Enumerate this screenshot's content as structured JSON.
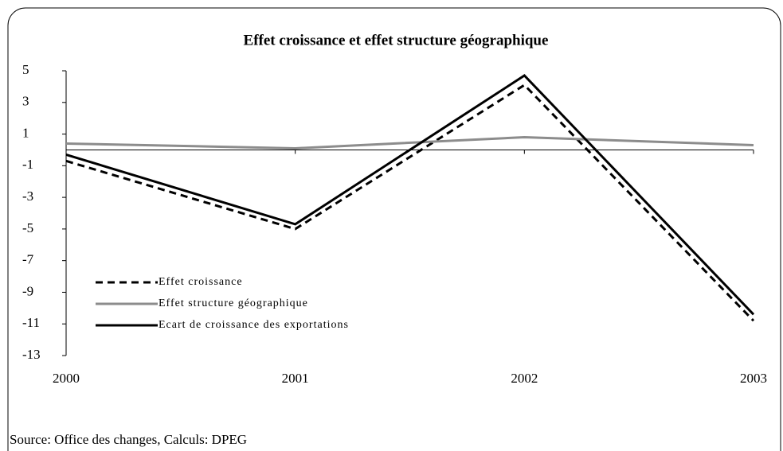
{
  "chart_data": {
    "type": "line",
    "title": "Effet croissance et effet structure géographique",
    "source": "Source: Office des changes, Calculs: DPEG",
    "categories": [
      "2000",
      "2001",
      "2002",
      "2003"
    ],
    "series": [
      {
        "name": "Effet croissance",
        "color": "#000000",
        "dash": "dashed",
        "values": [
          -0.7,
          -5.0,
          4.1,
          -10.8
        ]
      },
      {
        "name": "Effet structure géographique",
        "color": "#8c8c8c",
        "dash": "solid",
        "values": [
          0.4,
          0.1,
          0.8,
          0.3
        ]
      },
      {
        "name": "Ecart de croissance des exportations",
        "color": "#000000",
        "dash": "solid",
        "values": [
          -0.3,
          -4.7,
          4.7,
          -10.4
        ]
      }
    ],
    "ylim": [
      -13,
      5
    ],
    "yticks": [
      -13,
      -11,
      -9,
      -7,
      -5,
      -3,
      -1,
      1,
      3,
      5
    ],
    "grid": false
  }
}
